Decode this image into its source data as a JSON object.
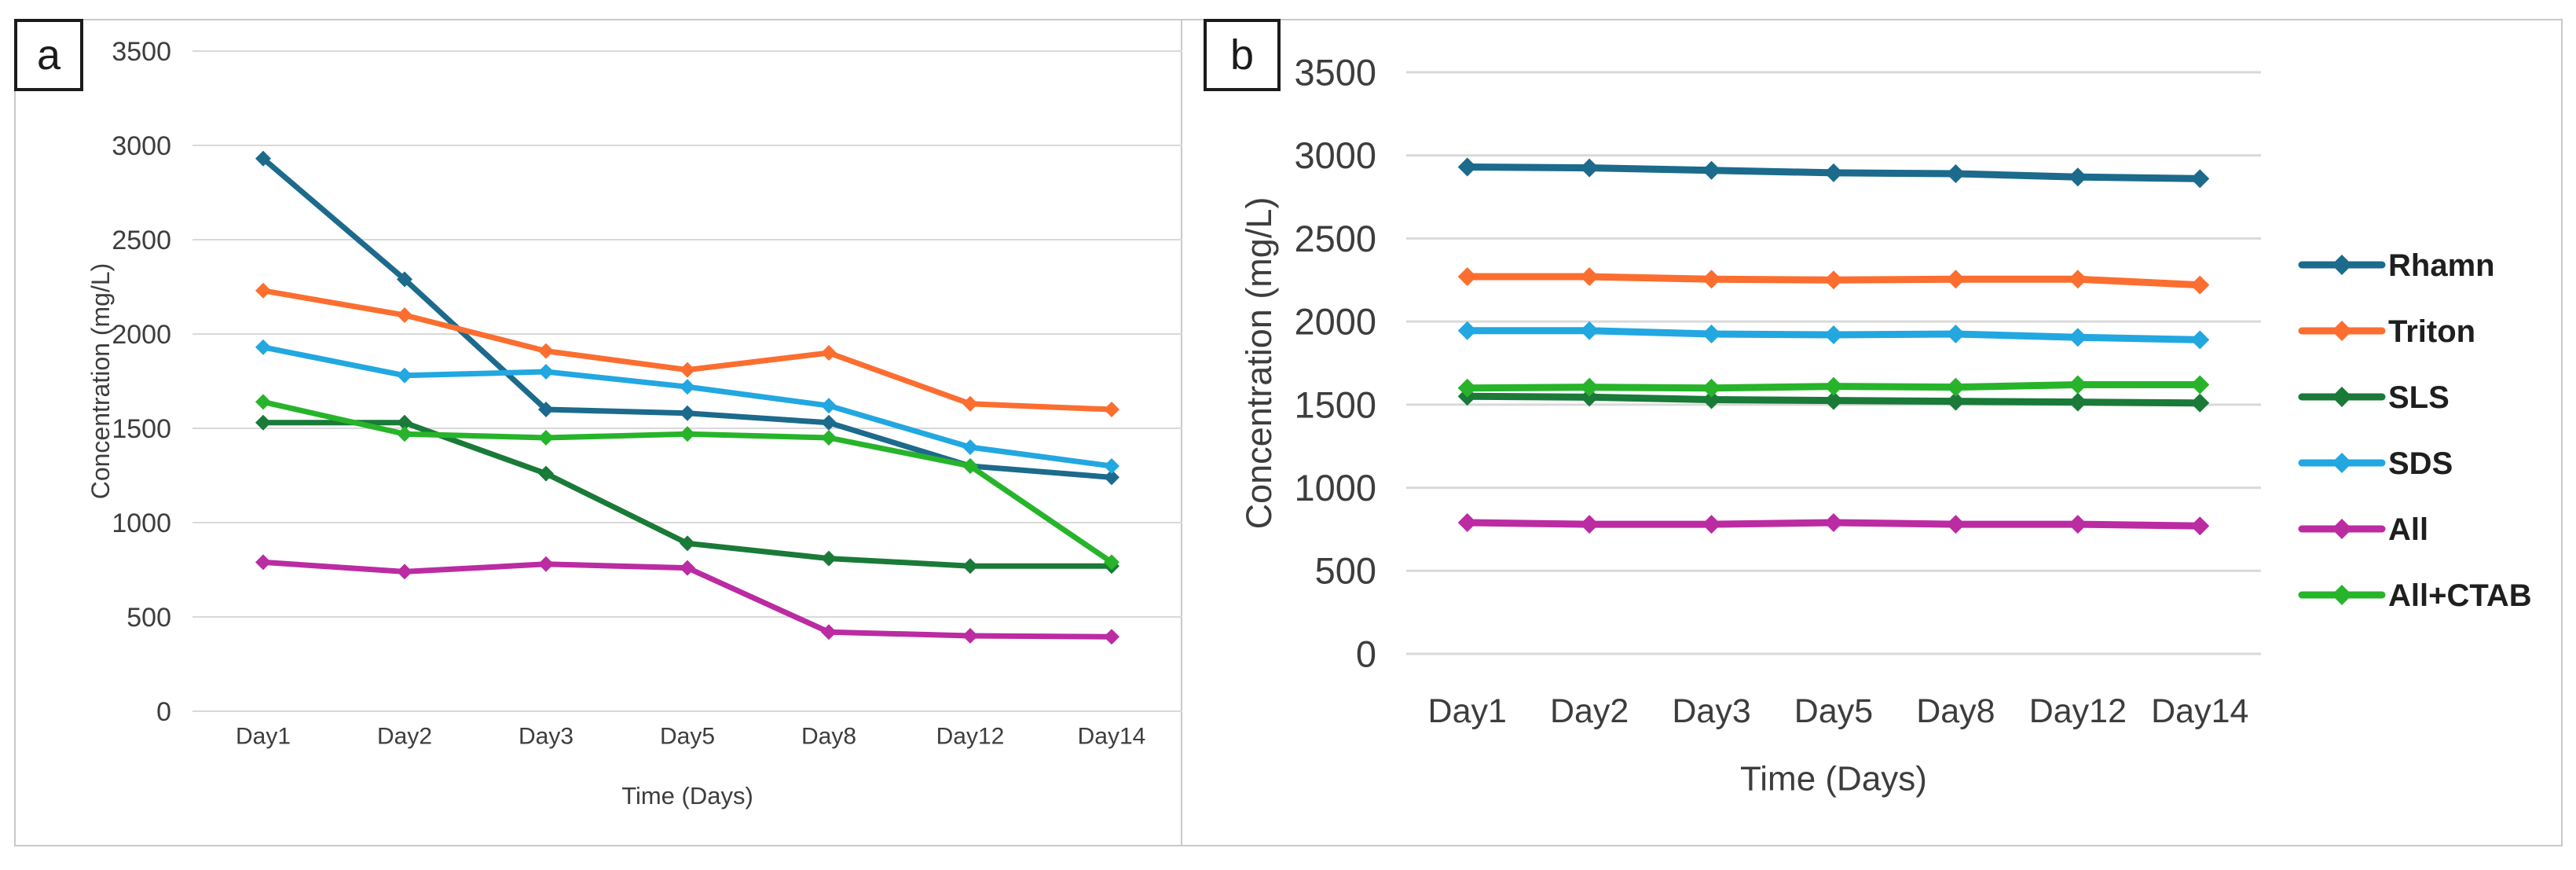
{
  "figure": {
    "panel_a_label": "a",
    "panel_b_label": "b",
    "background": "#ffffff",
    "frame_color": "#c9c9c9",
    "gridline_color": "#d9d9d9",
    "text_color": "#3d3d3d",
    "legend_text_color": "#1f1f1f"
  },
  "legend": {
    "position": "right-of-panel-b",
    "entries": [
      {
        "label": "Rhamn",
        "color": "#1c6a8c"
      },
      {
        "label": "Triton",
        "color": "#fb6e30"
      },
      {
        "label": "SLS",
        "color": "#1a7a38"
      },
      {
        "label": "SDS",
        "color": "#22a7e0"
      },
      {
        "label": "All",
        "color": "#bb2ba2"
      },
      {
        "label": "All+CTAB",
        "color": "#27b42a"
      }
    ]
  },
  "chart_data": [
    {
      "id": "a",
      "type": "line",
      "title": "",
      "xlabel": "Time (Days)",
      "ylabel": "Concentration (mg/L)",
      "categories": [
        "Day1",
        "Day2",
        "Day3",
        "Day5",
        "Day8",
        "Day12",
        "Day14"
      ],
      "ylim": [
        0,
        3500
      ],
      "yticks": [
        0,
        500,
        1000,
        1500,
        2000,
        2500,
        3000,
        3500
      ],
      "grid": true,
      "legend_position": "shared-right",
      "series": [
        {
          "name": "Rhamn",
          "color": "#1c6a8c",
          "values": [
            2930,
            2290,
            1600,
            1580,
            1530,
            1300,
            1240
          ]
        },
        {
          "name": "Triton",
          "color": "#fb6e30",
          "values": [
            2230,
            2100,
            1910,
            1810,
            1900,
            1630,
            1600
          ]
        },
        {
          "name": "SLS",
          "color": "#1a7a38",
          "values": [
            1530,
            1530,
            1260,
            890,
            810,
            770,
            770
          ]
        },
        {
          "name": "SDS",
          "color": "#22a7e0",
          "values": [
            1930,
            1780,
            1800,
            1720,
            1620,
            1400,
            1300
          ]
        },
        {
          "name": "All",
          "color": "#bb2ba2",
          "values": [
            790,
            740,
            780,
            760,
            420,
            400,
            395
          ]
        },
        {
          "name": "All+CTAB",
          "color": "#27b42a",
          "values": [
            1640,
            1470,
            1450,
            1470,
            1450,
            1300,
            790
          ]
        }
      ]
    },
    {
      "id": "b",
      "type": "line",
      "title": "",
      "xlabel": "Time (Days)",
      "ylabel": "Concentration (mg/L)",
      "categories": [
        "Day1",
        "Day2",
        "Day3",
        "Day5",
        "Day8",
        "Day12",
        "Day14"
      ],
      "ylim": [
        0,
        3500
      ],
      "yticks": [
        0,
        500,
        1000,
        1500,
        2000,
        2500,
        3000,
        3500
      ],
      "grid": true,
      "legend_position": "right",
      "series": [
        {
          "name": "Rhamn",
          "color": "#1c6a8c",
          "values": [
            2930,
            2925,
            2910,
            2895,
            2890,
            2870,
            2860
          ]
        },
        {
          "name": "Triton",
          "color": "#fb6e30",
          "values": [
            2270,
            2270,
            2255,
            2250,
            2255,
            2255,
            2220
          ]
        },
        {
          "name": "SLS",
          "color": "#1a7a38",
          "values": [
            1550,
            1545,
            1530,
            1525,
            1520,
            1515,
            1510
          ]
        },
        {
          "name": "SDS",
          "color": "#22a7e0",
          "values": [
            1945,
            1945,
            1925,
            1920,
            1925,
            1905,
            1890
          ]
        },
        {
          "name": "All",
          "color": "#bb2ba2",
          "values": [
            790,
            780,
            780,
            790,
            780,
            780,
            770
          ]
        },
        {
          "name": "All+CTAB",
          "color": "#27b42a",
          "values": [
            1600,
            1605,
            1600,
            1610,
            1605,
            1620,
            1620
          ]
        }
      ]
    }
  ]
}
